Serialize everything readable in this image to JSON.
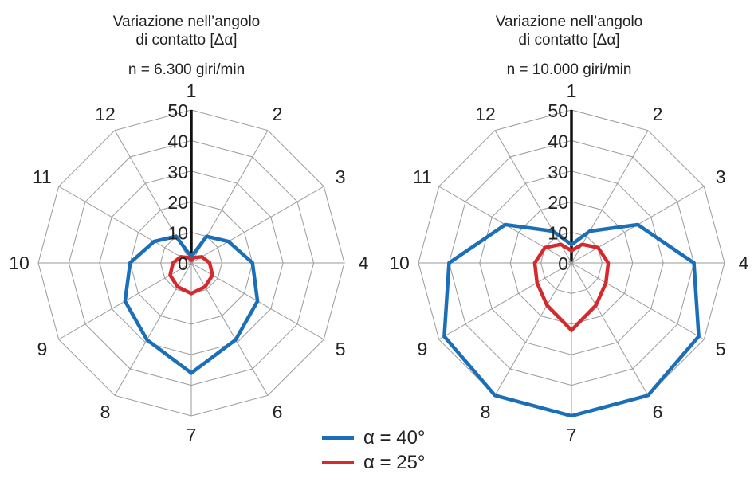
{
  "chart_data": [
    {
      "type": "radar",
      "title": "Variazione nell’angolo di contatto [Δα]",
      "title_line1": "Variazione nell’angolo",
      "title_line2": "di contatto [Δα]",
      "subtitle": "n = 6.300 giri/min",
      "categories": [
        "1",
        "2",
        "3",
        "4",
        "5",
        "6",
        "7",
        "8",
        "9",
        "10",
        "11",
        "12"
      ],
      "r_ticks": [
        "0",
        "10",
        "20",
        "30",
        "40",
        "50"
      ],
      "rlim": [
        0,
        50
      ],
      "grid": true,
      "series": [
        {
          "name": "α = 40°",
          "color": "#1a6fb8",
          "values": [
            2,
            10,
            14,
            20,
            25,
            29,
            36,
            29,
            25,
            20,
            14,
            10
          ]
        },
        {
          "name": "α = 25°",
          "color": "#d42a2e",
          "values": [
            1,
            2,
            4,
            6,
            8,
            9,
            10,
            9,
            8,
            6,
            4,
            2
          ]
        }
      ]
    },
    {
      "type": "radar",
      "title": "Variazione nell’angolo di contatto [Δα]",
      "title_line1": "Variazione nell’angolo",
      "title_line2": "di contatto [Δα]",
      "subtitle": "n = 10.000 giri/min",
      "categories": [
        "1",
        "2",
        "3",
        "4",
        "5",
        "6",
        "7",
        "8",
        "9",
        "10",
        "11",
        "12"
      ],
      "r_ticks": [
        "0",
        "10",
        "20",
        "30",
        "40",
        "50"
      ],
      "rlim": [
        0,
        50
      ],
      "grid": true,
      "series": [
        {
          "name": "α = 40°",
          "color": "#1a6fb8",
          "values": [
            6,
            12,
            25,
            40,
            48,
            50,
            50,
            50,
            48,
            40,
            25,
            12
          ]
        },
        {
          "name": "α = 25°",
          "color": "#d42a2e",
          "values": [
            4,
            7,
            10,
            12,
            13,
            16,
            22,
            16,
            13,
            12,
            10,
            7
          ]
        }
      ]
    }
  ],
  "legend": {
    "placement": "bottom-center",
    "items": [
      {
        "label": "α = 40°",
        "color": "#1a6fb8"
      },
      {
        "label": "α = 25°",
        "color": "#d42a2e"
      }
    ]
  }
}
